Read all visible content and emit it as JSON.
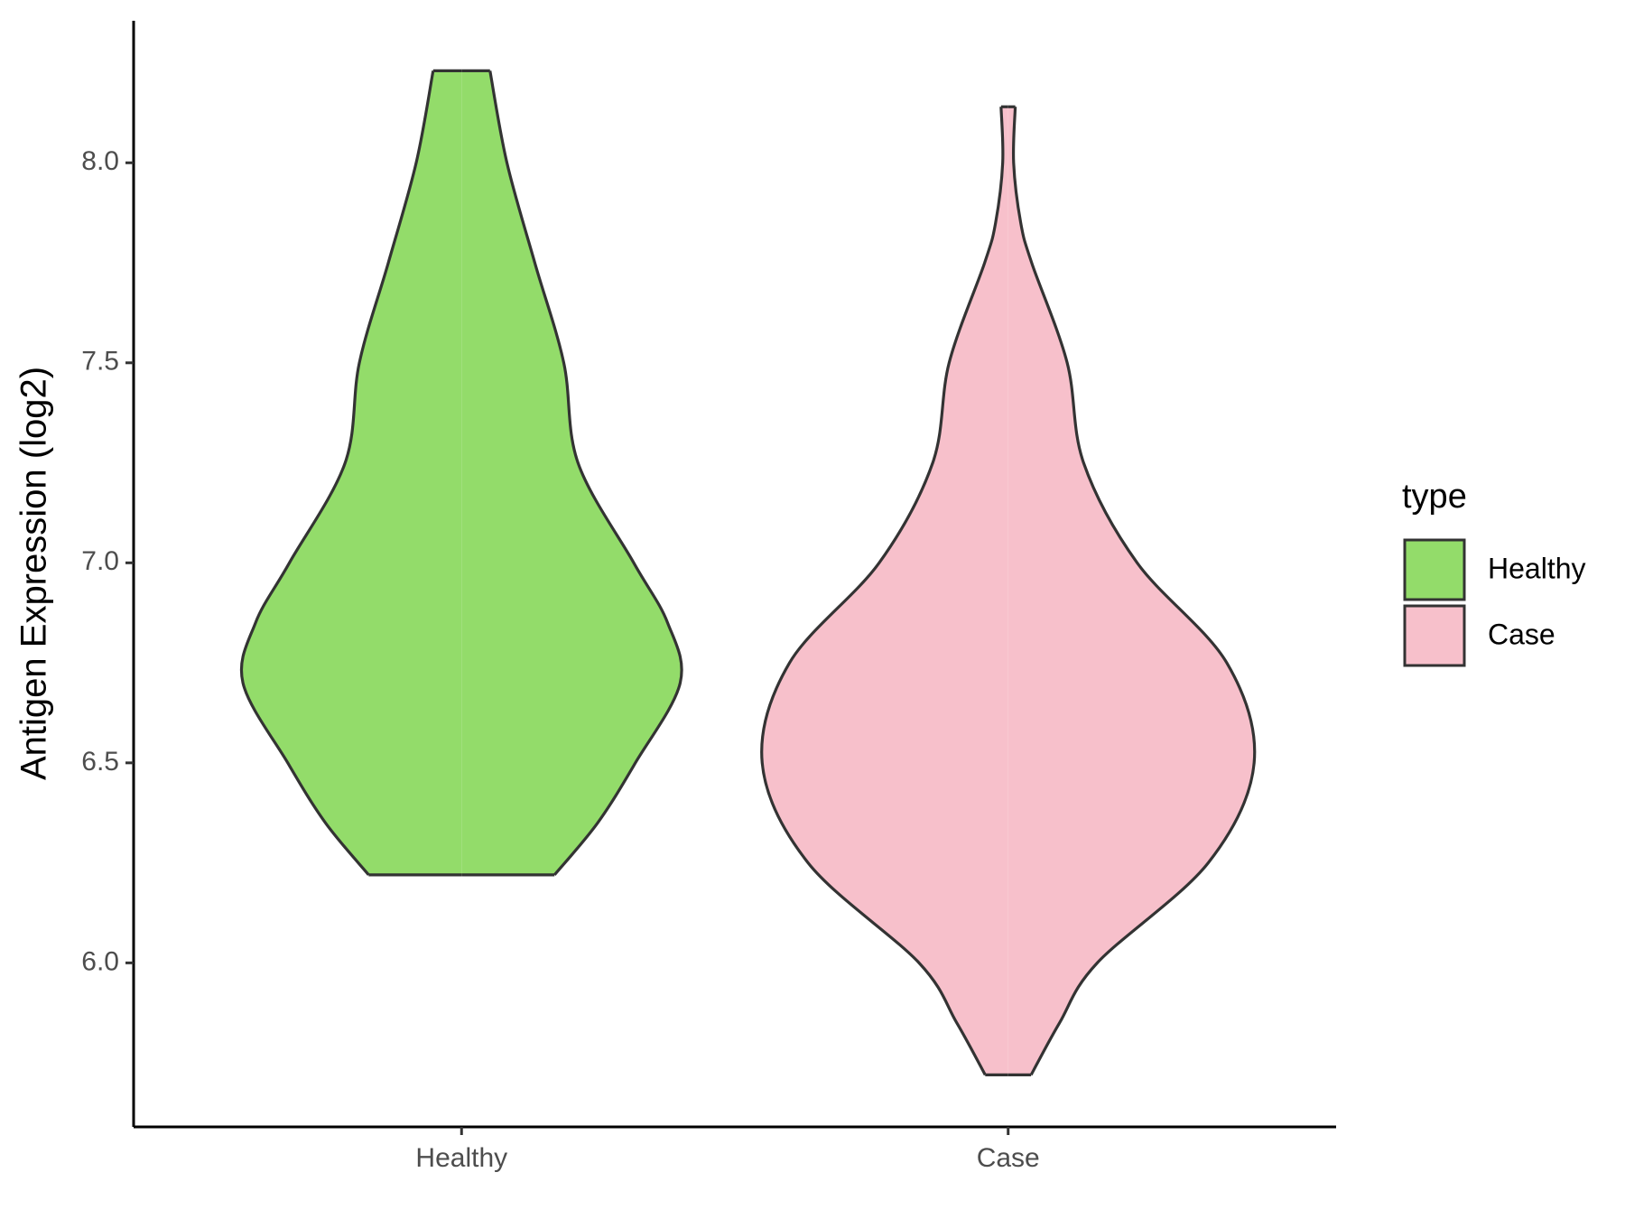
{
  "chart_data": {
    "type": "violin",
    "y_label": "Antigen Expression (log2)",
    "categories": [
      "Healthy",
      "Case"
    ],
    "legend_title": "type",
    "series": [
      {
        "name": "Healthy",
        "color": "#93dc6a",
        "y": [
          8.23,
          8.0,
          7.75,
          7.5,
          7.25,
          7.0,
          6.85,
          6.7,
          6.5,
          6.35,
          6.22
        ],
        "width": [
          0.052,
          0.083,
          0.134,
          0.187,
          0.213,
          0.315,
          0.377,
          0.4,
          0.318,
          0.249,
          0.17
        ]
      },
      {
        "name": "Case",
        "color": "#f7c0cb",
        "y": [
          8.14,
          8.0,
          7.85,
          7.75,
          7.5,
          7.25,
          7.0,
          6.75,
          6.5,
          6.25,
          6.0,
          5.85,
          5.72
        ],
        "width": [
          0.013,
          0.01,
          0.023,
          0.043,
          0.108,
          0.138,
          0.236,
          0.4,
          0.45,
          0.366,
          0.163,
          0.094,
          0.042
        ]
      }
    ],
    "ylim": [
      5.59,
      8.355
    ],
    "yticks": [
      {
        "value": 6.0,
        "label": "6.0"
      },
      {
        "value": 6.5,
        "label": "6.5"
      },
      {
        "value": 7.0,
        "label": "7.0"
      },
      {
        "value": 7.5,
        "label": "7.5"
      },
      {
        "value": 8.0,
        "label": "8.0"
      }
    ]
  }
}
